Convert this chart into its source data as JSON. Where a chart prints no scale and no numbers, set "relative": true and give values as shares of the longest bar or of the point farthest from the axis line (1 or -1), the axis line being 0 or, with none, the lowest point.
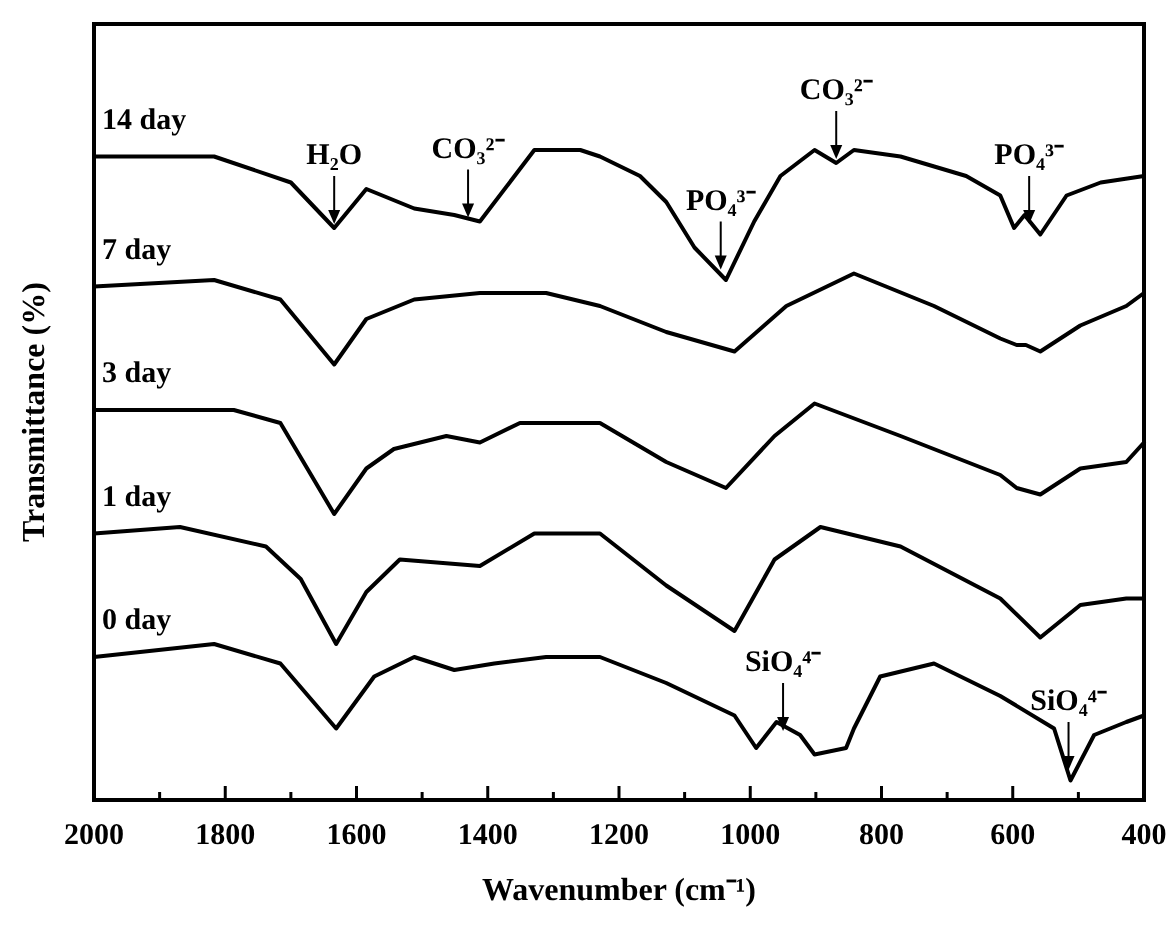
{
  "chart_data": {
    "type": "line",
    "relative": true,
    "xlabel": "Wavenumber (cm⁻¹)",
    "ylabel": "Transmittance (%)",
    "xlim": [
      2000,
      400
    ],
    "xticks": [
      2000,
      {
        "value": 1900,
        "label": null
      },
      1800,
      {
        "value": 1700,
        "label": null
      },
      1600,
      {
        "value": 1500,
        "label": null
      },
      1400,
      {
        "value": 1300,
        "label": null
      },
      1200,
      {
        "value": 1100,
        "label": null
      },
      1000,
      {
        "value": 900,
        "label": null
      },
      800,
      {
        "value": 700,
        "label": null
      },
      600,
      {
        "value": 500,
        "label": null
      },
      400
    ],
    "grid": false,
    "marker": "none",
    "line_style": "solid",
    "series": [
      {
        "name": "14 day",
        "color": "#000000",
        "x": [
          2000,
          1817,
          1700,
          1634,
          1585,
          1512,
          1451,
          1412,
          1329,
          1259,
          1229,
          1168,
          1128,
          1085,
          1037,
          994,
          954,
          902,
          869,
          842,
          771,
          671,
          619,
          598,
          582,
          558,
          518,
          466,
          400
        ],
        "values": [
          0.99,
          0.99,
          0.95,
          0.88,
          0.94,
          0.91,
          0.9,
          0.89,
          1.0,
          1.0,
          0.99,
          0.96,
          0.92,
          0.85,
          0.8,
          0.89,
          0.96,
          1.0,
          0.98,
          1.0,
          0.99,
          0.96,
          0.93,
          0.88,
          0.9,
          0.87,
          0.93,
          0.95,
          0.96
        ]
      },
      {
        "name": "7 day",
        "color": "#000000",
        "x": [
          2000,
          1817,
          1716,
          1634,
          1585,
          1512,
          1412,
          1311,
          1229,
          1128,
          1024,
          945,
          842,
          720,
          619,
          594,
          580,
          558,
          497,
          427,
          400
        ],
        "values": [
          0.79,
          0.8,
          0.77,
          0.67,
          0.74,
          0.77,
          0.78,
          0.78,
          0.76,
          0.72,
          0.69,
          0.76,
          0.81,
          0.76,
          0.71,
          0.7,
          0.7,
          0.69,
          0.73,
          0.76,
          0.78
        ]
      },
      {
        "name": "3 day",
        "color": "#000000",
        "x": [
          2000,
          1787,
          1716,
          1634,
          1585,
          1543,
          1463,
          1412,
          1351,
          1290,
          1229,
          1128,
          1037,
          963,
          902,
          771,
          619,
          594,
          558,
          497,
          427,
          400
        ],
        "values": [
          0.6,
          0.6,
          0.58,
          0.44,
          0.51,
          0.54,
          0.56,
          0.55,
          0.58,
          0.58,
          0.58,
          0.52,
          0.48,
          0.56,
          0.61,
          0.56,
          0.5,
          0.48,
          0.47,
          0.51,
          0.52,
          0.55
        ]
      },
      {
        "name": "1 day",
        "color": "#000000",
        "x": [
          2000,
          1869,
          1738,
          1685,
          1631,
          1585,
          1534,
          1412,
          1329,
          1229,
          1128,
          1024,
          963,
          893,
          771,
          619,
          558,
          497,
          427,
          400
        ],
        "values": [
          0.41,
          0.42,
          0.39,
          0.34,
          0.24,
          0.32,
          0.37,
          0.36,
          0.41,
          0.41,
          0.33,
          0.26,
          0.37,
          0.42,
          0.39,
          0.31,
          0.25,
          0.3,
          0.31,
          0.31
        ]
      },
      {
        "name": "0 day",
        "color": "#000000",
        "x": [
          2000,
          1817,
          1716,
          1631,
          1573,
          1512,
          1451,
          1390,
          1311,
          1229,
          1128,
          1024,
          991,
          960,
          924,
          902,
          854,
          842,
          802,
          720,
          619,
          537,
          512,
          476,
          427,
          400
        ],
        "values": [
          0.22,
          0.24,
          0.21,
          0.11,
          0.19,
          0.22,
          0.2,
          0.21,
          0.22,
          0.22,
          0.18,
          0.13,
          0.08,
          0.12,
          0.1,
          0.07,
          0.08,
          0.11,
          0.19,
          0.21,
          0.16,
          0.11,
          0.03,
          0.1,
          0.12,
          0.13
        ]
      }
    ],
    "annotations": [
      {
        "text": "H₂O",
        "x": 1634,
        "y": 0.88
      },
      {
        "text": "CO₃²⁻",
        "x": 1430,
        "y": 0.89
      },
      {
        "text": "PO₄³⁻",
        "x": 1045,
        "y": 0.81
      },
      {
        "text": "CO₃²⁻",
        "x": 869,
        "y": 0.98
      },
      {
        "text": "PO₄³⁻",
        "x": 575,
        "y": 0.88
      },
      {
        "text": "SiO₄⁴⁻",
        "x": 950,
        "y": 0.1
      },
      {
        "text": "SiO₄⁴⁻",
        "x": 515,
        "y": 0.04
      }
    ]
  }
}
